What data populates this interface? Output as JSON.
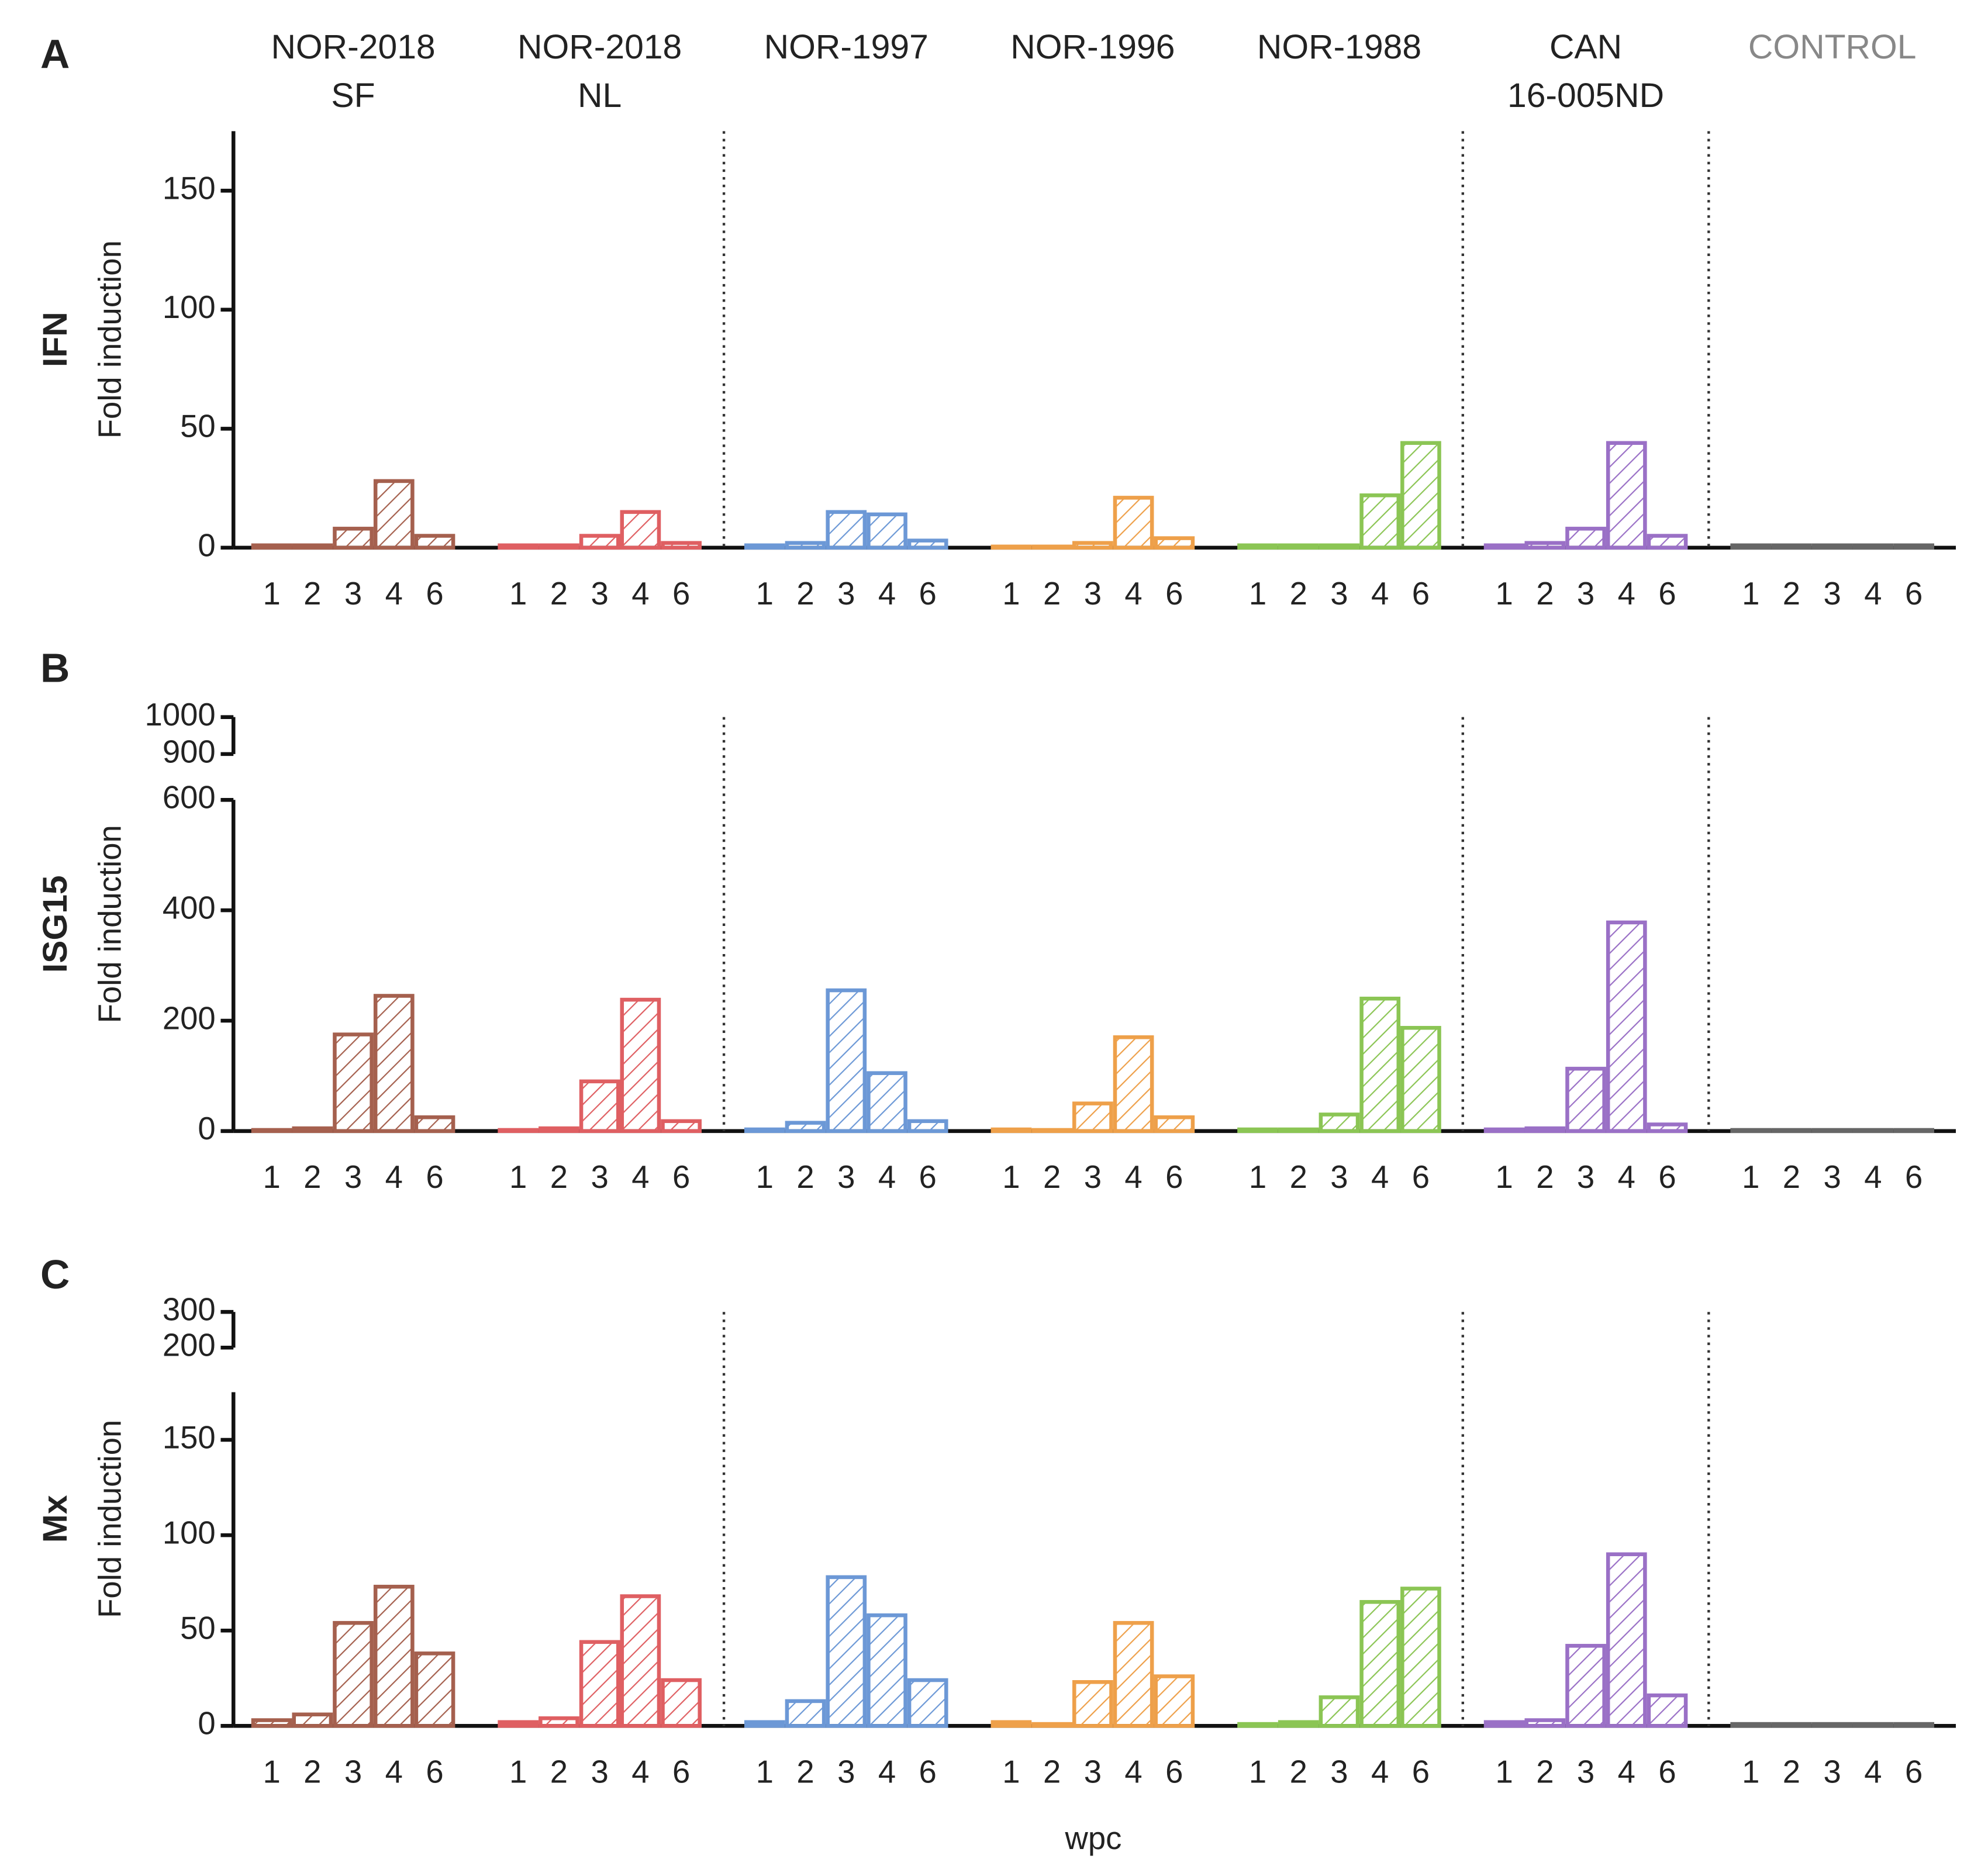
{
  "chart_data": [
    {
      "type": "bar",
      "panel": "A",
      "gene": "IFN",
      "y_label": "Fold induction",
      "categories": [
        "1",
        "2",
        "3",
        "4",
        "6"
      ],
      "ylim": [
        0,
        175
      ],
      "yticks": [
        0,
        50,
        100,
        150
      ],
      "series": [
        {
          "name": "NOR-2018\nSF",
          "color": "#a5604e",
          "values": [
            1,
            1,
            8,
            28,
            5
          ]
        },
        {
          "name": "NOR-2018\nNL",
          "color": "#df5f62",
          "values": [
            1,
            1,
            5,
            15,
            2
          ]
        },
        {
          "name": "NOR-1997",
          "color": "#6c98d6",
          "values": [
            1,
            2,
            15,
            14,
            3
          ]
        },
        {
          "name": "NOR-1996",
          "color": "#eea04a",
          "values": [
            0.5,
            0.5,
            2,
            21,
            4
          ]
        },
        {
          "name": "NOR-1988",
          "color": "#8bc554",
          "values": [
            1,
            1,
            1,
            22,
            44
          ]
        },
        {
          "name": "CAN\n16-005ND",
          "color": "#9a70c6",
          "values": [
            1,
            2,
            8,
            44,
            5
          ]
        },
        {
          "name": "CONTROL",
          "color": "#666666",
          "values": [
            1,
            1,
            1,
            1,
            1
          ]
        }
      ]
    },
    {
      "type": "bar",
      "panel": "B",
      "gene": "ISG15",
      "y_label": "Fold induction",
      "categories": [
        "1",
        "2",
        "3",
        "4",
        "6"
      ],
      "ylim": [
        0,
        600
      ],
      "yticks": [
        0,
        200,
        400,
        600
      ],
      "ylim_upper": [
        900,
        1000
      ],
      "yticks_upper": [
        900,
        1000
      ],
      "series": [
        {
          "color": "#a5604e",
          "values": [
            2,
            5,
            175,
            245,
            25
          ]
        },
        {
          "color": "#df5f62",
          "values": [
            2,
            5,
            90,
            238,
            18
          ]
        },
        {
          "color": "#6c98d6",
          "values": [
            3,
            15,
            255,
            105,
            18
          ]
        },
        {
          "color": "#eea04a",
          "values": [
            3,
            2,
            50,
            170,
            25
          ]
        },
        {
          "color": "#8bc554",
          "values": [
            3,
            3,
            30,
            240,
            187
          ]
        },
        {
          "color": "#9a70c6",
          "values": [
            3,
            5,
            113,
            378,
            12
          ]
        },
        {
          "color": "#666666",
          "values": [
            2,
            2,
            2,
            2,
            2
          ]
        }
      ]
    },
    {
      "type": "bar",
      "panel": "C",
      "gene": "Mx",
      "y_label": "Fold induction",
      "x_label": "wpc",
      "categories": [
        "1",
        "2",
        "3",
        "4",
        "6"
      ],
      "ylim": [
        0,
        175
      ],
      "yticks": [
        0,
        50,
        100,
        150
      ],
      "ylim_upper": [
        200,
        300
      ],
      "yticks_upper": [
        200,
        300
      ],
      "series": [
        {
          "color": "#a5604e",
          "values": [
            3,
            6,
            54,
            73,
            38
          ]
        },
        {
          "color": "#df5f62",
          "values": [
            2,
            4,
            44,
            68,
            24
          ]
        },
        {
          "color": "#6c98d6",
          "values": [
            2,
            13,
            78,
            58,
            24
          ]
        },
        {
          "color": "#eea04a",
          "values": [
            2,
            1,
            23,
            54,
            26
          ]
        },
        {
          "color": "#8bc554",
          "values": [
            1,
            2,
            15,
            65,
            72
          ]
        },
        {
          "color": "#9a70c6",
          "values": [
            2,
            3,
            42,
            90,
            16
          ]
        },
        {
          "color": "#666666",
          "values": [
            1,
            1,
            1,
            1,
            1
          ]
        }
      ]
    }
  ]
}
